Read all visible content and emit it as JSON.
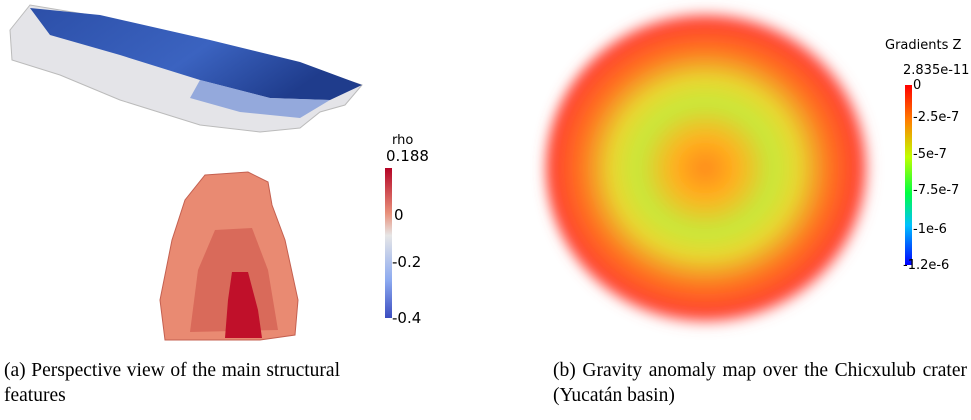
{
  "panels": [
    {
      "caption": "(a) Perspective view of the main structural features",
      "colorbar": {
        "title": "rho",
        "ticks": [
          "0.188",
          "0",
          "-0.2",
          "-0.4"
        ]
      }
    },
    {
      "caption": "(b) Gravity anomaly map over the Chicxulub crater (Yucatán basin)",
      "colorbar": {
        "title": "Gradients Z",
        "ticks": [
          "2.835e-11",
          "0",
          "-2.5e-7",
          "-5e-7",
          "-7.5e-7",
          "-1e-6",
          "-1.2e-6"
        ]
      }
    }
  ]
}
